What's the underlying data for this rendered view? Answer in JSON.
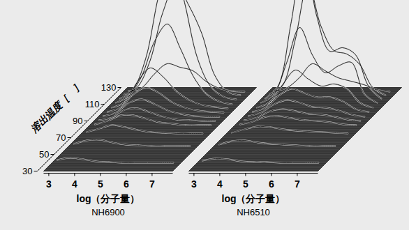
{
  "chart_data": [
    {
      "type": "waterfall",
      "title": "NH6900",
      "x_label": "log（分子量）",
      "z_label": "溶出温度［　］",
      "color": "#000000",
      "x": [
        3,
        3.5,
        4,
        4.5,
        5,
        5.5,
        6,
        6.5,
        7,
        7.5
      ],
      "xlim": [
        2.8,
        7.8
      ],
      "xticks": [
        3,
        4,
        5,
        6,
        7
      ],
      "zlim": [
        30,
        130
      ],
      "zticks": [
        30,
        50,
        70,
        90,
        110,
        130
      ],
      "slices": [
        {
          "temperature": 40,
          "values": [
            4,
            7,
            5,
            2,
            1,
            0,
            0,
            0,
            0,
            0
          ]
        },
        {
          "temperature": 60,
          "values": [
            3,
            8,
            9,
            5,
            2,
            1,
            0,
            0,
            0,
            0
          ]
        },
        {
          "temperature": 75,
          "values": [
            2,
            7,
            12,
            9,
            5,
            2,
            1,
            0,
            0,
            0
          ]
        },
        {
          "temperature": 85,
          "values": [
            1,
            6,
            14,
            14,
            9,
            4,
            2,
            0,
            0,
            0
          ]
        },
        {
          "temperature": 90,
          "values": [
            1,
            5,
            16,
            18,
            12,
            6,
            2,
            1,
            0,
            0
          ]
        },
        {
          "temperature": 95,
          "values": [
            1,
            6,
            20,
            25,
            18,
            9,
            4,
            1,
            0,
            0
          ]
        },
        {
          "temperature": 100,
          "values": [
            1,
            7,
            26,
            36,
            28,
            15,
            7,
            3,
            1,
            0
          ]
        },
        {
          "temperature": 105,
          "values": [
            1,
            9,
            38,
            58,
            45,
            25,
            12,
            5,
            2,
            0
          ]
        },
        {
          "temperature": 110,
          "values": [
            2,
            12,
            40,
            90,
            115,
            80,
            40,
            15,
            4,
            0
          ]
        },
        {
          "temperature": 115,
          "values": [
            2,
            15,
            60,
            150,
            210,
            140,
            60,
            20,
            5,
            1
          ]
        },
        {
          "temperature": 120,
          "values": [
            2,
            12,
            50,
            120,
            160,
            130,
            90,
            30,
            6,
            1
          ]
        },
        {
          "temperature": 125,
          "values": [
            1,
            5,
            25,
            40,
            35,
            30,
            15,
            5,
            1,
            0
          ]
        }
      ]
    },
    {
      "type": "waterfall",
      "title": "NH6510",
      "x_label": "log（分子量）",
      "color": "#000000",
      "tick_labels": "x",
      "x": [
        3,
        3.5,
        4,
        4.5,
        5,
        5.5,
        6,
        6.5,
        7,
        7.5
      ],
      "xlim": [
        2.8,
        7.8
      ],
      "xticks": [
        3,
        4,
        5,
        6,
        7
      ],
      "zlim": [
        30,
        130
      ],
      "slices": [
        {
          "temperature": 40,
          "values": [
            3,
            6,
            5,
            2,
            1,
            1,
            0,
            0,
            0,
            0
          ]
        },
        {
          "temperature": 60,
          "values": [
            2,
            7,
            8,
            5,
            3,
            2,
            1,
            0,
            0,
            0
          ]
        },
        {
          "temperature": 75,
          "values": [
            1,
            6,
            10,
            9,
            6,
            4,
            3,
            2,
            1,
            0
          ]
        },
        {
          "temperature": 85,
          "values": [
            1,
            5,
            12,
            13,
            10,
            7,
            6,
            4,
            1,
            0
          ]
        },
        {
          "temperature": 90,
          "values": [
            1,
            5,
            14,
            17,
            14,
            10,
            9,
            6,
            2,
            0
          ]
        },
        {
          "temperature": 95,
          "values": [
            1,
            6,
            18,
            24,
            20,
            14,
            13,
            9,
            3,
            0
          ]
        },
        {
          "temperature": 100,
          "values": [
            1,
            7,
            24,
            34,
            28,
            22,
            22,
            16,
            5,
            1
          ]
        },
        {
          "temperature": 105,
          "values": [
            1,
            9,
            34,
            55,
            42,
            32,
            35,
            28,
            8,
            1
          ]
        },
        {
          "temperature": 110,
          "values": [
            2,
            14,
            60,
            110,
            70,
            45,
            55,
            60,
            15,
            2
          ]
        },
        {
          "temperature": 115,
          "values": [
            2,
            20,
            110,
            210,
            120,
            70,
            75,
            65,
            20,
            2
          ]
        },
        {
          "temperature": 120,
          "values": [
            2,
            14,
            80,
            160,
            100,
            65,
            60,
            45,
            12,
            1
          ]
        },
        {
          "temperature": 125,
          "values": [
            1,
            5,
            20,
            40,
            30,
            20,
            15,
            10,
            3,
            0
          ]
        }
      ]
    }
  ]
}
